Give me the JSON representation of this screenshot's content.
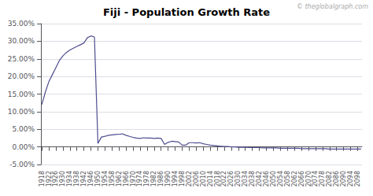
{
  "chart_data": {
    "type": "line",
    "title": "Fiji - Population Growth Rate",
    "watermark": "© theglobalgraph.com",
    "color": "#4d4d8f",
    "grid": true,
    "x": [
      1918,
      1920,
      1922,
      1924,
      1926,
      1928,
      1930,
      1932,
      1934,
      1936,
      1938,
      1940,
      1942,
      1944,
      1946,
      1948,
      1950,
      1952,
      1954,
      1956,
      1958,
      1960,
      1962,
      1964,
      1966,
      1968,
      1970,
      1972,
      1974,
      1976,
      1978,
      1980,
      1982,
      1984,
      1986,
      1988,
      1990,
      1992,
      1994,
      1996,
      1998,
      2000,
      2002,
      2004,
      2006,
      2008,
      2010,
      2012,
      2014,
      2016,
      2018,
      2020,
      2022,
      2024,
      2026,
      2028,
      2030,
      2032,
      2034,
      2036,
      2038,
      2040,
      2042,
      2044,
      2046,
      2048,
      2050,
      2052,
      2054,
      2056,
      2058,
      2060,
      2062,
      2064,
      2066,
      2068,
      2070,
      2072,
      2074,
      2076,
      2078,
      2080,
      2082,
      2084,
      2086,
      2088,
      2090,
      2092,
      2094,
      2096,
      2098,
      2100
    ],
    "values": [
      0.12,
      0.155,
      0.185,
      0.205,
      0.225,
      0.245,
      0.258,
      0.268,
      0.275,
      0.28,
      0.285,
      0.29,
      0.295,
      0.31,
      0.315,
      0.312,
      0.01,
      0.028,
      0.03,
      0.033,
      0.034,
      0.035,
      0.036,
      0.037,
      0.033,
      0.03,
      0.027,
      0.025,
      0.024,
      0.026,
      0.025,
      0.025,
      0.024,
      0.025,
      0.024,
      0.007,
      0.013,
      0.016,
      0.015,
      0.014,
      0.005,
      0.005,
      0.012,
      0.012,
      0.011,
      0.012,
      0.009,
      0.007,
      0.005,
      0.004,
      0.003,
      0.002,
      0.001,
      0.001,
      0.0,
      0.0,
      -0.001,
      -0.001,
      -0.001,
      -0.002,
      -0.002,
      -0.002,
      -0.002,
      -0.003,
      -0.003,
      -0.003,
      -0.003,
      -0.003,
      -0.004,
      -0.004,
      -0.004,
      -0.004,
      -0.004,
      -0.004,
      -0.005,
      -0.005,
      -0.005,
      -0.005,
      -0.005,
      -0.005,
      -0.005,
      -0.005,
      -0.006,
      -0.006,
      -0.006,
      -0.006,
      -0.006,
      -0.006,
      -0.006,
      -0.006,
      -0.006,
      -0.006
    ],
    "xlim": [
      1917.5,
      2100.5
    ],
    "xticks": [
      1918,
      1922,
      1926,
      1930,
      1934,
      1938,
      1942,
      1946,
      1950,
      1954,
      1958,
      1962,
      1966,
      1970,
      1974,
      1978,
      1982,
      1986,
      1990,
      1994,
      1998,
      2002,
      2006,
      2010,
      2014,
      2018,
      2022,
      2026,
      2030,
      2034,
      2038,
      2042,
      2046,
      2050,
      2054,
      2058,
      2062,
      2066,
      2070,
      2074,
      2078,
      2082,
      2086,
      2090,
      2094,
      2098
    ],
    "ylim": [
      -0.05,
      0.35
    ],
    "yticks": [
      {
        "value": -0.05,
        "label": "-5.00%"
      },
      {
        "value": 0.0,
        "label": "0.00%"
      },
      {
        "value": 0.05,
        "label": "5.00%"
      },
      {
        "value": 0.1,
        "label": "10.00%"
      },
      {
        "value": 0.15,
        "label": "15.00%"
      },
      {
        "value": 0.2,
        "label": "20.00%"
      },
      {
        "value": 0.25,
        "label": "25.00%"
      },
      {
        "value": 0.3,
        "label": "30.00%"
      },
      {
        "value": 0.35,
        "label": "35.00%"
      }
    ]
  }
}
